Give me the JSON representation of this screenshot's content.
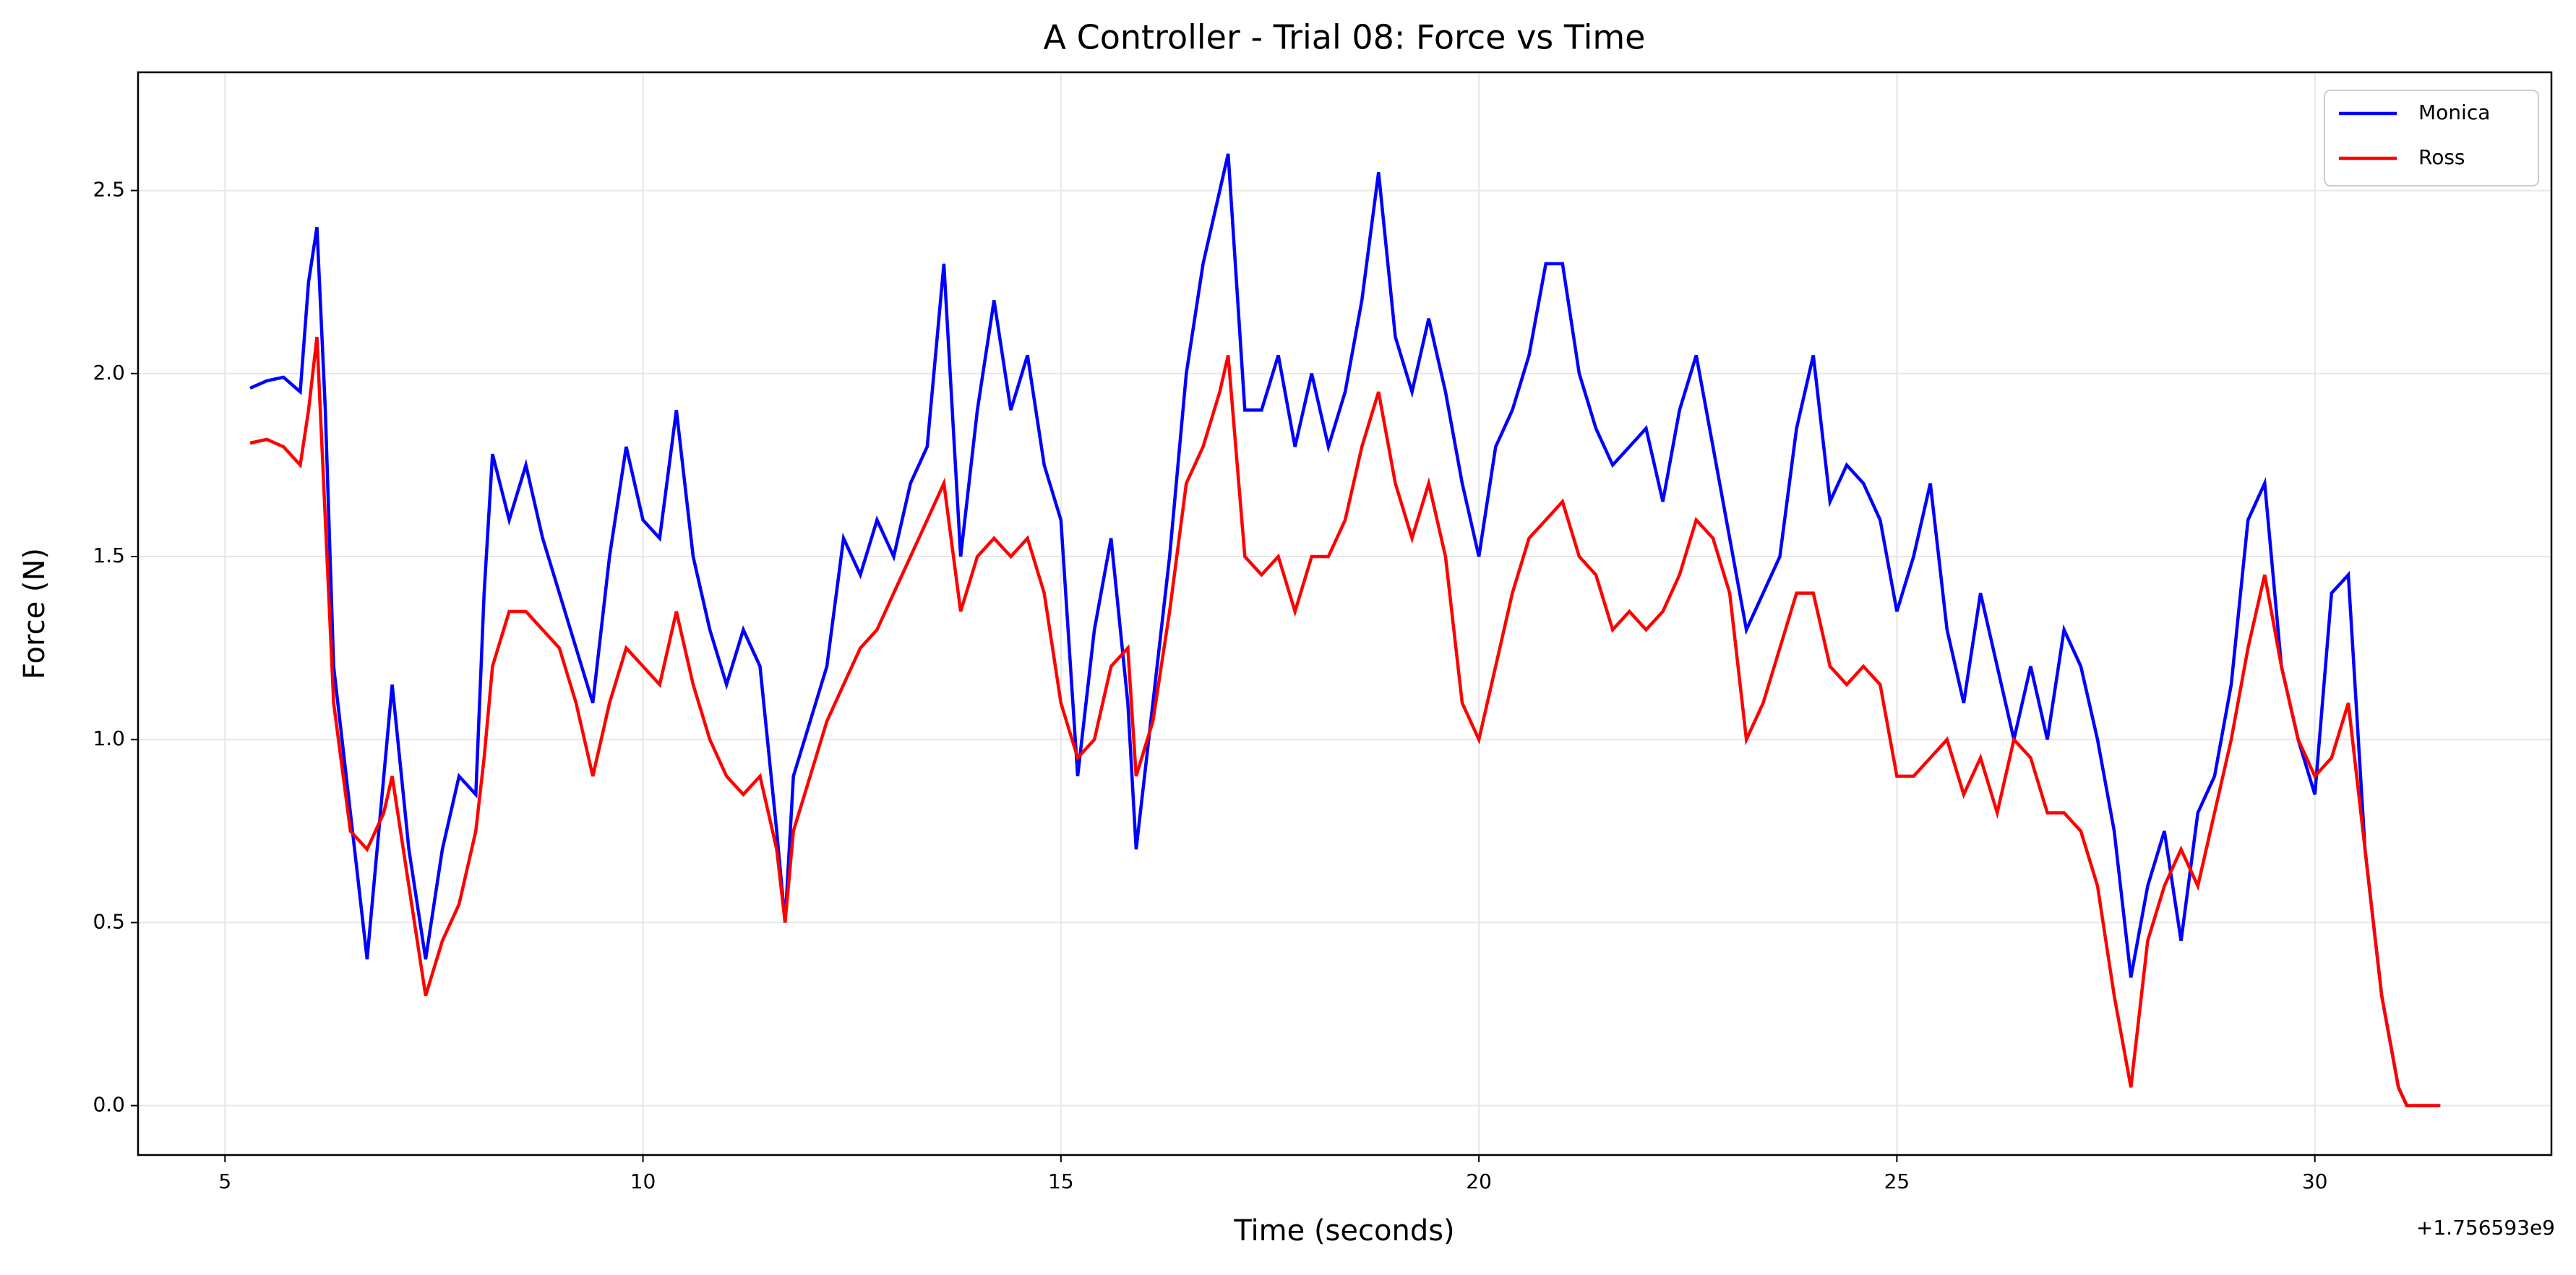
{
  "chart_data": {
    "type": "line",
    "title": "A Controller - Trial 08: Force vs Time",
    "xlabel": "Time (seconds)",
    "ylabel": "Force (N)",
    "x_offset_label": "+1.756593e9",
    "x": [
      5.3,
      5.5,
      5.7,
      5.9,
      6.0,
      6.1,
      6.2,
      6.3,
      6.5,
      6.7,
      6.9,
      7.0,
      7.2,
      7.4,
      7.6,
      7.8,
      8.0,
      8.1,
      8.2,
      8.4,
      8.6,
      8.8,
      9.0,
      9.2,
      9.4,
      9.6,
      9.8,
      10.0,
      10.2,
      10.4,
      10.6,
      10.8,
      11.0,
      11.2,
      11.4,
      11.6,
      11.7,
      11.8,
      12.0,
      12.2,
      12.4,
      12.6,
      12.8,
      13.0,
      13.2,
      13.4,
      13.6,
      13.8,
      14.0,
      14.2,
      14.4,
      14.6,
      14.8,
      15.0,
      15.2,
      15.4,
      15.6,
      15.8,
      15.9,
      16.1,
      16.3,
      16.5,
      16.7,
      16.9,
      17.0,
      17.2,
      17.4,
      17.6,
      17.8,
      18.0,
      18.2,
      18.4,
      18.6,
      18.8,
      19.0,
      19.2,
      19.4,
      19.6,
      19.8,
      20.0,
      20.2,
      20.4,
      20.6,
      20.8,
      21.0,
      21.2,
      21.4,
      21.6,
      21.8,
      22.0,
      22.2,
      22.4,
      22.6,
      22.8,
      23.0,
      23.2,
      23.4,
      23.6,
      23.8,
      24.0,
      24.2,
      24.4,
      24.6,
      24.8,
      25.0,
      25.2,
      25.4,
      25.6,
      25.8,
      26.0,
      26.2,
      26.4,
      26.6,
      26.8,
      27.0,
      27.2,
      27.4,
      27.6,
      27.8,
      28.0,
      28.2,
      28.4,
      28.6,
      28.8,
      29.0,
      29.2,
      29.4,
      29.6,
      29.8,
      30.0,
      30.2,
      30.4,
      30.6,
      30.8,
      31.0,
      31.1,
      31.5
    ],
    "series": [
      {
        "name": "Monica",
        "color": "#0000ff",
        "values": [
          1.96,
          1.98,
          1.99,
          1.95,
          2.25,
          2.4,
          1.9,
          1.2,
          0.8,
          0.4,
          0.9,
          1.15,
          0.7,
          0.4,
          0.7,
          0.9,
          0.85,
          1.4,
          1.78,
          1.6,
          1.75,
          1.55,
          1.4,
          1.25,
          1.1,
          1.5,
          1.8,
          1.6,
          1.55,
          1.9,
          1.5,
          1.3,
          1.15,
          1.3,
          1.2,
          0.75,
          0.5,
          0.9,
          1.05,
          1.2,
          1.55,
          1.45,
          1.6,
          1.5,
          1.7,
          1.8,
          2.3,
          1.5,
          1.9,
          2.2,
          1.9,
          2.05,
          1.75,
          1.6,
          0.9,
          1.3,
          1.55,
          1.1,
          0.7,
          1.1,
          1.5,
          2.0,
          2.3,
          2.5,
          2.6,
          1.9,
          1.9,
          2.05,
          1.8,
          2.0,
          1.8,
          1.95,
          2.2,
          2.55,
          2.1,
          1.95,
          2.15,
          1.95,
          1.7,
          1.5,
          1.8,
          1.9,
          2.05,
          2.3,
          2.3,
          2.0,
          1.85,
          1.75,
          1.8,
          1.85,
          1.65,
          1.9,
          2.05,
          1.8,
          1.55,
          1.3,
          1.4,
          1.5,
          1.85,
          2.05,
          1.65,
          1.75,
          1.7,
          1.6,
          1.35,
          1.5,
          1.7,
          1.3,
          1.1,
          1.4,
          1.2,
          1.0,
          1.2,
          1.0,
          1.3,
          1.2,
          1.0,
          0.75,
          0.35,
          0.6,
          0.75,
          0.45,
          0.8,
          0.9,
          1.15,
          1.6,
          1.7,
          1.2,
          1.0,
          0.85,
          1.4,
          1.45,
          0.7,
          0.3,
          0.05,
          0,
          0
        ]
      },
      {
        "name": "Ross",
        "color": "#ff0000",
        "values": [
          1.81,
          1.82,
          1.8,
          1.75,
          1.9,
          2.1,
          1.6,
          1.1,
          0.75,
          0.7,
          0.8,
          0.9,
          0.6,
          0.3,
          0.45,
          0.55,
          0.75,
          0.95,
          1.2,
          1.35,
          1.35,
          1.3,
          1.25,
          1.1,
          0.9,
          1.1,
          1.25,
          1.2,
          1.15,
          1.35,
          1.15,
          1.0,
          0.9,
          0.85,
          0.9,
          0.7,
          0.5,
          0.75,
          0.9,
          1.05,
          1.15,
          1.25,
          1.3,
          1.4,
          1.5,
          1.6,
          1.7,
          1.35,
          1.5,
          1.55,
          1.5,
          1.55,
          1.4,
          1.1,
          0.95,
          1.0,
          1.2,
          1.25,
          0.9,
          1.05,
          1.35,
          1.7,
          1.8,
          1.95,
          2.05,
          1.5,
          1.45,
          1.5,
          1.35,
          1.5,
          1.5,
          1.6,
          1.8,
          1.95,
          1.7,
          1.55,
          1.7,
          1.5,
          1.1,
          1.0,
          1.2,
          1.4,
          1.55,
          1.6,
          1.65,
          1.5,
          1.45,
          1.3,
          1.35,
          1.3,
          1.35,
          1.45,
          1.6,
          1.55,
          1.4,
          1.0,
          1.1,
          1.25,
          1.4,
          1.4,
          1.2,
          1.15,
          1.2,
          1.15,
          0.9,
          0.9,
          0.95,
          1.0,
          0.85,
          0.95,
          0.8,
          1.0,
          0.95,
          0.8,
          0.8,
          0.75,
          0.6,
          0.3,
          0.05,
          0.45,
          0.6,
          0.7,
          0.6,
          0.8,
          1.0,
          1.25,
          1.45,
          1.2,
          1.0,
          0.9,
          0.95,
          1.1,
          0.7,
          0.3,
          0.05,
          0,
          0
        ]
      }
    ],
    "xlim": [
      3.96,
      32.83
    ],
    "ylim": [
      -0.135,
      2.823
    ],
    "xticks": [
      5,
      10,
      15,
      20,
      25,
      30
    ],
    "yticks": [
      {
        "value": 0,
        "label": "0.0"
      },
      0.5,
      {
        "value": 1,
        "label": "1.0"
      },
      1.5,
      {
        "value": 2,
        "label": "2.0"
      },
      2.5
    ],
    "grid": true,
    "legend": "upper right"
  }
}
